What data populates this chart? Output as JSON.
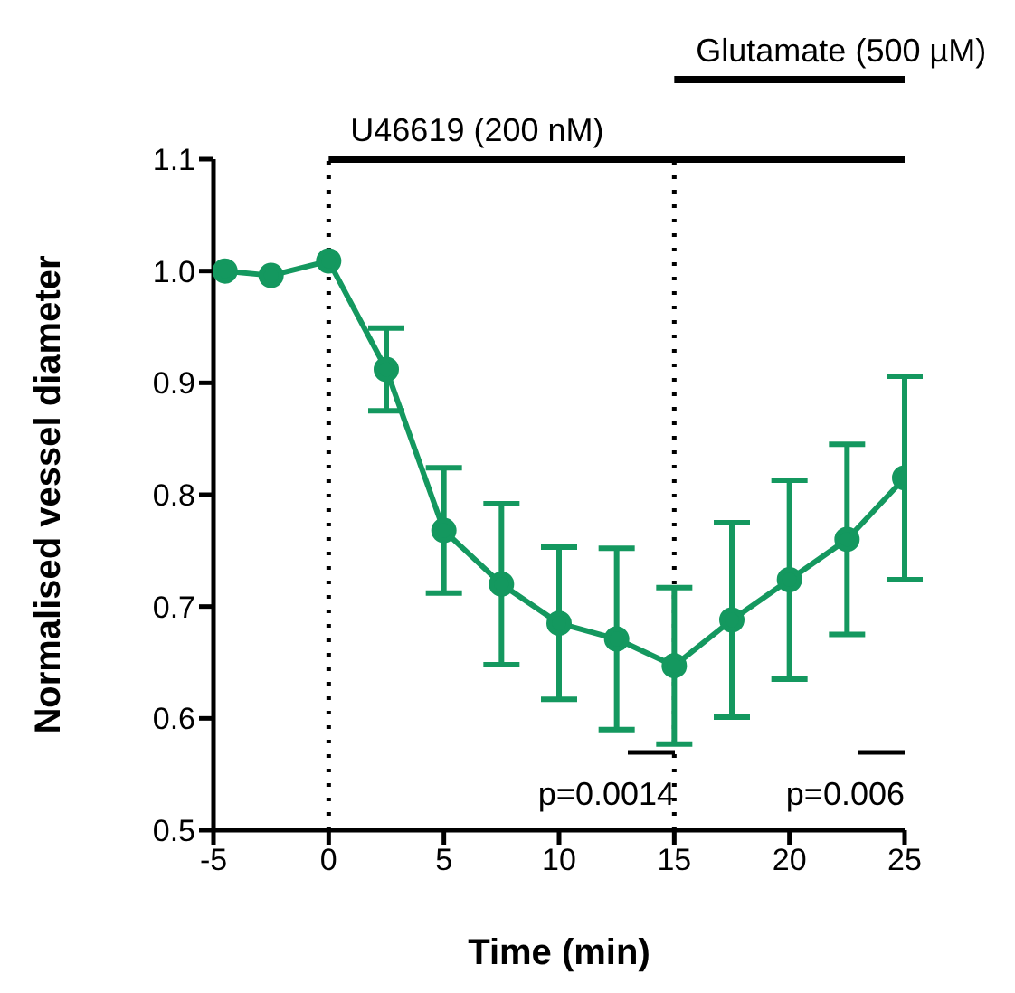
{
  "chart_data": {
    "type": "line",
    "xlabel": "Time (min)",
    "ylabel": "Normalised vessel diameter",
    "x": [
      -4.5,
      -2.5,
      0,
      2.5,
      5,
      7.5,
      10,
      12.5,
      15,
      17.5,
      20,
      22.5,
      25
    ],
    "series": [
      {
        "color": "#14985f",
        "values": [
          1.0,
          0.996,
          1.009,
          0.912,
          0.768,
          0.72,
          0.685,
          0.671,
          0.647,
          0.688,
          0.724,
          0.76,
          0.815
        ],
        "errors": [
          null,
          null,
          null,
          0.037,
          0.056,
          0.072,
          0.068,
          0.081,
          0.07,
          0.087,
          0.089,
          0.085,
          0.091
        ]
      }
    ],
    "xlim": [
      -5,
      25
    ],
    "xticks": [
      -5,
      0,
      5,
      10,
      15,
      20,
      25
    ],
    "ylim": [
      0.5,
      1.1
    ],
    "yticks": [
      0.5,
      0.6,
      0.7,
      0.8,
      0.9,
      {
        "value": 1,
        "label": "1.0"
      },
      1.1
    ],
    "ref_lines": [
      {
        "axis": "x",
        "value": 0,
        "label": "U46619 (200 nM)",
        "line_style": "dotted",
        "color": "#000000"
      },
      {
        "axis": "x",
        "value": 15,
        "label": "Glutamate (500 µM)",
        "line_style": "dotted",
        "color": "#000000"
      }
    ],
    "annotations": [
      "p=0.0014",
      "p=0.006"
    ],
    "marker": "circle",
    "line_style": "solid",
    "grid": false,
    "legend": false
  }
}
